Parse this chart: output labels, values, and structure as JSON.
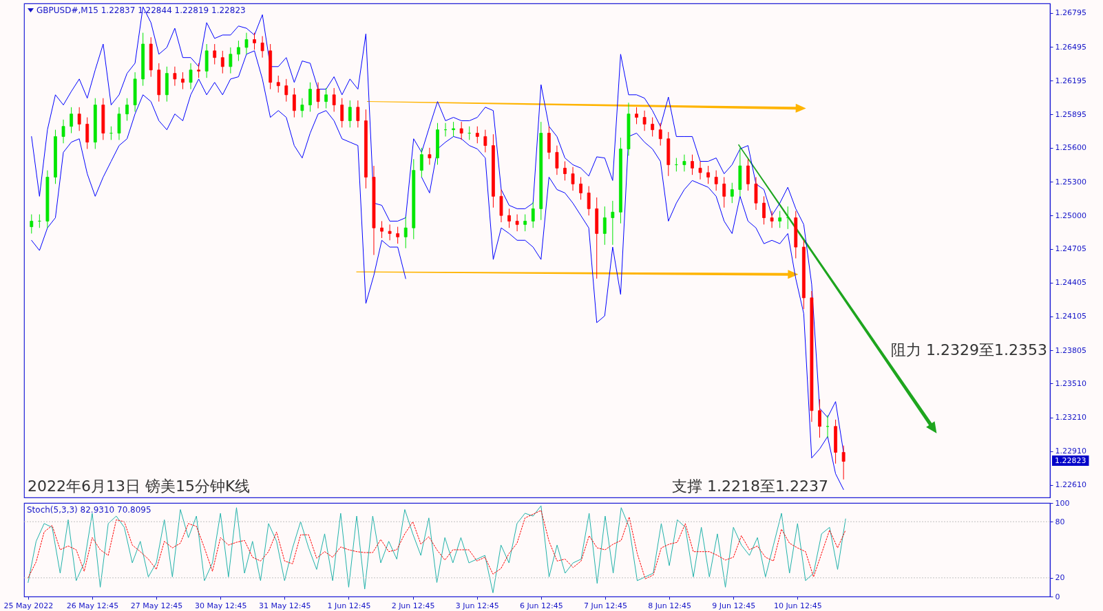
{
  "chart_data": [
    {
      "type": "candlestick",
      "title": "GBPUSD#,M15 1.22837 1.22844 1.22819 1.22823",
      "categories": [
        null,
        null,
        null,
        null,
        null,
        null,
        null,
        null,
        null,
        null,
        null,
        null,
        null,
        null,
        null,
        null,
        null,
        null,
        null,
        null,
        null,
        null,
        null,
        null,
        null,
        null,
        null,
        null,
        null,
        null,
        null,
        null,
        null,
        null,
        null,
        null,
        null,
        null,
        null,
        null,
        null,
        null,
        null,
        null,
        null,
        null,
        null,
        null,
        null,
        null,
        null,
        null,
        null,
        null,
        null,
        null,
        null,
        null,
        null,
        null,
        null,
        null,
        null,
        null,
        null,
        null,
        null,
        null,
        null,
        null,
        null,
        null,
        null,
        null,
        null,
        null,
        null,
        null,
        null,
        null,
        null,
        null,
        null,
        null,
        null,
        null,
        null,
        null,
        null,
        null,
        null,
        null,
        null,
        null,
        null,
        null,
        null,
        null,
        null,
        null,
        null,
        null,
        null,
        null,
        null,
        null,
        null,
        null,
        null,
        null,
        null,
        null,
        null,
        null,
        null,
        null,
        null,
        null,
        null,
        null,
        null,
        null,
        null,
        null,
        null,
        null,
        null,
        null
      ],
      "ohlc": [
        [
          1.249,
          1.2501,
          1.2484,
          1.2495
        ],
        [
          1.2495,
          1.2501,
          1.2489,
          1.2495
        ],
        [
          1.2495,
          1.254,
          1.2489,
          1.2534
        ],
        [
          1.2534,
          1.2576,
          1.2528,
          1.257
        ],
        [
          1.257,
          1.2585,
          1.2564,
          1.2579
        ],
        [
          1.2579,
          1.2596,
          1.2573,
          1.259
        ],
        [
          1.259,
          1.2596,
          1.2575,
          1.2581
        ],
        [
          1.2581,
          1.2587,
          1.2559,
          1.2565
        ],
        [
          1.2565,
          1.2604,
          1.2559,
          1.2598
        ],
        [
          1.2598,
          1.2604,
          1.2567,
          1.2573
        ],
        [
          1.2573,
          1.2579,
          1.2567,
          1.2573
        ],
        [
          1.2573,
          1.2596,
          1.2567,
          1.259
        ],
        [
          1.259,
          1.2604,
          1.2584,
          1.2598
        ],
        [
          1.2598,
          1.2627,
          1.2592,
          1.2621
        ],
        [
          1.2621,
          1.2662,
          1.2615,
          1.2652
        ],
        [
          1.2652,
          1.2658,
          1.2623,
          1.2629
        ],
        [
          1.2629,
          1.2635,
          1.2601,
          1.2607
        ],
        [
          1.2607,
          1.2632,
          1.2601,
          1.2626
        ],
        [
          1.2626,
          1.2632,
          1.2615,
          1.2621
        ],
        [
          1.2621,
          1.2627,
          1.2612,
          1.2618
        ],
        [
          1.2618,
          1.2635,
          1.2612,
          1.2629
        ],
        [
          1.2629,
          1.2635,
          1.2622,
          1.2628
        ],
        [
          1.2628,
          1.2652,
          1.2622,
          1.2646
        ],
        [
          1.2646,
          1.2652,
          1.2634,
          1.264
        ],
        [
          1.264,
          1.2646,
          1.2626,
          1.2632
        ],
        [
          1.2632,
          1.2649,
          1.2626,
          1.2643
        ],
        [
          1.2643,
          1.2655,
          1.2637,
          1.2649
        ],
        [
          1.2649,
          1.2662,
          1.2643,
          1.2656
        ],
        [
          1.2656,
          1.2662,
          1.2647,
          1.2653
        ],
        [
          1.2653,
          1.2659,
          1.264,
          1.2646
        ],
        [
          1.2646,
          1.2652,
          1.2612,
          1.2618
        ],
        [
          1.2618,
          1.2624,
          1.2609,
          1.2615
        ],
        [
          1.2615,
          1.2621,
          1.2601,
          1.2607
        ],
        [
          1.2607,
          1.2613,
          1.2587,
          1.2593
        ],
        [
          1.2593,
          1.2604,
          1.2587,
          1.2598
        ],
        [
          1.2598,
          1.2618,
          1.2592,
          1.2612
        ],
        [
          1.2612,
          1.2618,
          1.2595,
          1.2601
        ],
        [
          1.2601,
          1.2613,
          1.2595,
          1.2607
        ],
        [
          1.2607,
          1.2613,
          1.2592,
          1.2598
        ],
        [
          1.2598,
          1.2604,
          1.2578,
          1.2584
        ],
        [
          1.2584,
          1.2602,
          1.2578,
          1.2596
        ],
        [
          1.2596,
          1.2602,
          1.2578,
          1.2584
        ],
        [
          1.2584,
          1.2594,
          1.2524,
          1.2534
        ],
        [
          1.2534,
          1.2544,
          1.2465,
          1.2489
        ],
        [
          1.2489,
          1.2495,
          1.248,
          1.2486
        ],
        [
          1.2486,
          1.2492,
          1.2478,
          1.2484
        ],
        [
          1.2484,
          1.249,
          1.2475,
          1.2481
        ],
        [
          1.2481,
          1.2499,
          1.2471,
          1.2489
        ],
        [
          1.2489,
          1.255,
          1.2479,
          1.254
        ],
        [
          1.254,
          1.256,
          1.2534,
          1.2554
        ],
        [
          1.2554,
          1.256,
          1.2545,
          1.2551
        ],
        [
          1.2551,
          1.2582,
          1.2545,
          1.2576
        ],
        [
          1.2576,
          1.2582,
          1.257,
          1.2576
        ],
        [
          1.2576,
          1.2583,
          1.257,
          1.2577
        ],
        [
          1.2577,
          1.2583,
          1.2567,
          1.2573
        ],
        [
          1.2573,
          1.2579,
          1.2567,
          1.2573
        ],
        [
          1.2573,
          1.2579,
          1.2564,
          1.257
        ],
        [
          1.257,
          1.2576,
          1.2556,
          1.2562
        ],
        [
          1.2562,
          1.2572,
          1.2507,
          1.2517
        ],
        [
          1.2517,
          1.2523,
          1.2494,
          1.25
        ],
        [
          1.25,
          1.2506,
          1.2489,
          1.2495
        ],
        [
          1.2495,
          1.2501,
          1.2486,
          1.2492
        ],
        [
          1.2492,
          1.2501,
          1.2486,
          1.2495
        ],
        [
          1.2495,
          1.2512,
          1.2489,
          1.2506
        ],
        [
          1.2506,
          1.2583,
          1.2496,
          1.2573
        ],
        [
          1.2573,
          1.2579,
          1.255,
          1.2556
        ],
        [
          1.2556,
          1.2562,
          1.2536,
          1.2542
        ],
        [
          1.2542,
          1.2548,
          1.2531,
          1.2537
        ],
        [
          1.2537,
          1.2543,
          1.2522,
          1.2528
        ],
        [
          1.2528,
          1.2534,
          1.2514,
          1.252
        ],
        [
          1.252,
          1.2526,
          1.25,
          1.2506
        ],
        [
          1.2506,
          1.2516,
          1.2444,
          1.2484
        ],
        [
          1.2484,
          1.2508,
          1.2474,
          1.2498
        ],
        [
          1.2498,
          1.2513,
          1.2474,
          1.2503
        ],
        [
          1.2503,
          1.2569,
          1.2493,
          1.2559
        ],
        [
          1.2559,
          1.26,
          1.2553,
          1.259
        ],
        [
          1.259,
          1.2596,
          1.2581,
          1.2587
        ],
        [
          1.2587,
          1.2593,
          1.2575,
          1.2581
        ],
        [
          1.2581,
          1.2587,
          1.257,
          1.2576
        ],
        [
          1.2576,
          1.2582,
          1.2562,
          1.2568
        ],
        [
          1.2568,
          1.2574,
          1.2535,
          1.2545
        ],
        [
          1.2545,
          1.2551,
          1.2539,
          1.2545
        ],
        [
          1.2545,
          1.2554,
          1.2539,
          1.2548
        ],
        [
          1.2548,
          1.2554,
          1.2536,
          1.2542
        ],
        [
          1.2542,
          1.2548,
          1.2532,
          1.2538
        ],
        [
          1.2538,
          1.2544,
          1.2528,
          1.2534
        ],
        [
          1.2534,
          1.254,
          1.2522,
          1.2528
        ],
        [
          1.2528,
          1.2534,
          1.2507,
          1.2517
        ],
        [
          1.2517,
          1.2529,
          1.2511,
          1.2523
        ],
        [
          1.2523,
          1.256,
          1.2517,
          1.2544
        ],
        [
          1.2544,
          1.255,
          1.2522,
          1.2528
        ],
        [
          1.2528,
          1.2534,
          1.2505,
          1.2511
        ],
        [
          1.2511,
          1.2517,
          1.2492,
          1.2498
        ],
        [
          1.2498,
          1.2504,
          1.2489,
          1.2495
        ],
        [
          1.2495,
          1.2504,
          1.2489,
          1.2498
        ],
        [
          1.2498,
          1.2508,
          1.2488,
          1.2498
        ],
        [
          1.2498,
          1.2504,
          1.2462,
          1.2472
        ],
        [
          1.2472,
          1.2478,
          1.2417,
          1.2427
        ],
        [
          1.2427,
          1.2433,
          1.2317,
          1.2327
        ],
        [
          1.2327,
          1.2337,
          1.2303,
          1.2313
        ],
        [
          1.2313,
          1.2323,
          1.2303,
          1.2313
        ],
        [
          1.2313,
          1.2319,
          1.228,
          1.229
        ],
        [
          1.229,
          1.2296,
          1.2266,
          1.2282
        ],
        null,
        null,
        null,
        null,
        null,
        null,
        null,
        null,
        null,
        null,
        null,
        null,
        null,
        null,
        null,
        null,
        null,
        null,
        null,
        null,
        null,
        null,
        null,
        null,
        null
      ],
      "colors": [
        "#00e600",
        "#00e600",
        "#00e600",
        "#00e600",
        "#00e600",
        "#00e600",
        "#ff0000",
        "#ff0000",
        "#00e600",
        "#ff0000",
        "#00e600",
        "#00e600",
        "#00e600",
        "#00e600",
        "#00e600",
        "#ff0000",
        "#ff0000",
        "#00e600",
        "#ff0000",
        "#ff0000",
        "#00e600",
        "#ff0000",
        "#00e600",
        "#ff0000",
        "#ff0000",
        "#00e600",
        "#00e600",
        "#00e600",
        "#ff0000",
        "#ff0000",
        "#ff0000",
        "#ff0000",
        "#ff0000",
        "#ff0000",
        "#00e600",
        "#00e600",
        "#ff0000",
        "#00e600",
        "#ff0000",
        "#ff0000",
        "#00e600",
        "#ff0000",
        "#ff0000",
        "#ff0000",
        "#ff0000",
        "#ff0000",
        "#ff0000",
        "#00e600",
        "#00e600",
        "#00e600",
        "#ff0000",
        "#00e600",
        "#00e600",
        "#00e600",
        "#ff0000",
        "#00e600",
        "#ff0000",
        "#ff0000",
        "#ff0000",
        "#ff0000",
        "#ff0000",
        "#ff0000",
        "#00e600",
        "#00e600",
        "#00e600",
        "#ff0000",
        "#ff0000",
        "#ff0000",
        "#ff0000",
        "#ff0000",
        "#ff0000",
        "#ff0000",
        "#00e600",
        "#00e600",
        "#00e600",
        "#00e600",
        "#ff0000",
        "#ff0000",
        "#ff0000",
        "#ff0000",
        "#ff0000",
        "#00e600",
        "#00e600",
        "#ff0000",
        "#ff0000",
        "#ff0000",
        "#ff0000",
        "#ff0000",
        "#00e600",
        "#00e600",
        "#ff0000",
        "#ff0000",
        "#ff0000",
        "#ff0000",
        "#00e600",
        "#00e600",
        "#ff0000",
        "#ff0000",
        "#ff0000",
        "#ff0000",
        "#00e600",
        "#ff0000",
        "#ff0000",
        null,
        null,
        null,
        null,
        null,
        null,
        null,
        null,
        null,
        null,
        null,
        null,
        null,
        null,
        null,
        null,
        null,
        null,
        null,
        null,
        null,
        null,
        null,
        null,
        null
      ],
      "series": [
        {
          "type": "line",
          "color": "#0000ff",
          "values": [
            1.257,
            1.2517,
            1.2576,
            1.2607,
            1.2598,
            1.261,
            1.2621,
            1.2604,
            1.2629,
            1.2652,
            1.2598,
            1.2607,
            1.2626,
            1.2635,
            1.2685,
            1.2671,
            1.2643,
            1.2649,
            1.2666,
            1.264,
            1.264,
            1.2632,
            1.2671,
            1.2657,
            1.266,
            1.266,
            1.2668,
            1.2666,
            1.266,
            1.2678,
            1.2632,
            1.2632,
            1.264,
            1.2618,
            1.2637,
            1.2635,
            1.2612,
            1.2612,
            1.2623,
            1.2607,
            1.2621,
            1.2612,
            1.2661,
            1.2511,
            1.2509,
            1.2495,
            1.2495,
            1.2498,
            1.2568,
            1.2556,
            1.2579,
            1.2601,
            1.2584,
            1.2587,
            1.2584,
            1.2584,
            1.2587,
            1.2596,
            1.2593,
            1.2523,
            1.2509,
            1.2506,
            1.2506,
            1.2511,
            1.2616,
            1.2579,
            1.257,
            1.2551,
            1.2545,
            1.2542,
            1.2535,
            1.2552,
            1.2551,
            1.2531,
            1.2643,
            1.2607,
            1.2607,
            1.2604,
            1.2593,
            1.2579,
            1.2605,
            1.257,
            1.257,
            1.257,
            1.2548,
            1.2548,
            1.2551,
            1.2537,
            1.2545,
            1.2559,
            1.2562,
            1.2528,
            1.2523,
            1.25,
            1.2511,
            1.2525,
            1.2506,
            1.2492,
            1.2439,
            1.2329,
            1.2321,
            1.2335,
            1.229,
            null,
            null,
            null,
            null,
            null,
            null,
            null,
            null,
            null,
            null,
            null,
            null,
            null,
            null,
            null,
            null,
            null,
            null,
            null,
            null,
            null,
            null,
            null,
            null,
            null
          ]
        },
        {
          "type": "line",
          "color": "#0000ff",
          "values": [
            1.2478,
            1.2469,
            1.2489,
            1.2498,
            1.2556,
            1.2565,
            1.2568,
            1.2537,
            1.2517,
            1.2534,
            1.2548,
            1.2562,
            1.2568,
            1.259,
            1.2607,
            1.2601,
            1.2584,
            1.2576,
            1.259,
            1.2584,
            1.2607,
            1.2621,
            1.2607,
            1.2618,
            1.2607,
            1.2621,
            1.2623,
            1.2643,
            1.2646,
            1.2621,
            1.2587,
            1.2593,
            1.2587,
            1.2562,
            1.2551,
            1.2573,
            1.259,
            1.2593,
            1.2584,
            1.2568,
            1.2565,
            1.2562,
            1.2422,
            1.2447,
            1.2478,
            1.2472,
            1.2472,
            1.2444,
            null,
            1.2534,
            1.252,
            1.2559,
            1.2565,
            1.257,
            1.2568,
            1.2562,
            1.2559,
            1.2551,
            1.2461,
            1.2489,
            1.2484,
            1.2478,
            1.2478,
            1.2472,
            1.2461,
            1.2534,
            1.2523,
            1.252,
            1.2511,
            1.25,
            1.2489,
            1.2405,
            1.2411,
            1.2472,
            1.243,
            1.257,
            1.2573,
            1.2565,
            1.2559,
            1.2548,
            1.2495,
            1.2511,
            1.2523,
            1.2531,
            1.2528,
            1.2525,
            1.2517,
            1.2495,
            1.2484,
            1.2517,
            1.2495,
            1.2489,
            1.2475,
            1.2478,
            1.2475,
            1.2484,
            1.2444,
            1.2413,
            1.2285,
            1.2293,
            1.2304,
            1.2271,
            1.2257,
            null,
            null,
            null,
            null,
            null,
            null,
            null,
            null,
            null,
            null,
            null,
            null,
            null,
            null,
            null,
            null,
            null,
            null,
            null,
            null,
            null,
            null,
            null,
            null,
            null
          ]
        }
      ],
      "ylim": [
        1.225,
        1.2688
      ],
      "yticks": [
        {
          "value": 1.2261,
          "label": "1.22610"
        },
        {
          "value": 1.2291,
          "label": "1.22910"
        },
        {
          "value": 1.2321,
          "label": "1.23210"
        },
        {
          "value": 1.2351,
          "label": "1.23510"
        },
        1.23805,
        1.24105,
        1.24405,
        1.24705,
        {
          "value": 1.25,
          "label": "1.25000"
        },
        {
          "value": 1.253,
          "label": "1.25300"
        },
        {
          "value": 1.256,
          "label": "1.25600"
        },
        1.25895,
        1.26195,
        1.26495,
        1.26795
      ],
      "tick_labels": "y",
      "annotations": [
        "2022年6月13日 镑美15分钟K线",
        "支撑 1.2218至1.2237",
        "阻力 1.2329至1.2353",
        "1.22823"
      ]
    },
    {
      "type": "line",
      "title": "Stoch(5,3,3) 82.9310 70.8095",
      "categories": [
        "25 May 2022",
        null,
        null,
        null,
        null,
        null,
        null,
        null,
        "26 May 12:45",
        null,
        null,
        null,
        null,
        null,
        null,
        null,
        "27 May 12:45",
        null,
        null,
        null,
        null,
        null,
        null,
        null,
        "30 May 12:45",
        null,
        null,
        null,
        null,
        null,
        null,
        null,
        "31 May 12:45",
        null,
        null,
        null,
        null,
        null,
        null,
        null,
        "1 Jun 12:45",
        null,
        null,
        null,
        null,
        null,
        null,
        null,
        "2 Jun 12:45",
        null,
        null,
        null,
        null,
        null,
        null,
        null,
        "3 Jun 12:45",
        null,
        null,
        null,
        null,
        null,
        null,
        null,
        "6 Jun 12:45",
        null,
        null,
        null,
        null,
        null,
        null,
        null,
        "7 Jun 12:45",
        null,
        null,
        null,
        null,
        null,
        null,
        null,
        "8 Jun 12:45",
        null,
        null,
        null,
        null,
        null,
        null,
        null,
        "9 Jun 12:45",
        null,
        null,
        null,
        null,
        null,
        null,
        null,
        "10 Jun 12:45",
        null,
        null,
        null,
        null,
        null,
        null,
        null,
        null,
        null,
        null,
        null,
        null,
        null,
        null,
        null,
        null,
        null,
        null,
        null,
        null,
        null,
        null,
        null,
        null,
        null,
        null,
        null,
        null,
        null,
        null,
        null
      ],
      "series": [
        {
          "color": "#20b2aa",
          "values": [
            15,
            59,
            78,
            74,
            25,
            82,
            17,
            36,
            89,
            10,
            78,
            86,
            74,
            36,
            59,
            21,
            36,
            82,
            21,
            93,
            63,
            86,
            17,
            36,
            89,
            21,
            95,
            25,
            59,
            17,
            78,
            59,
            17,
            52,
            80,
            52,
            29,
            67,
            17,
            89,
            10,
            86,
            8,
            86,
            36,
            59,
            40,
            93,
            67,
            44,
            84,
            15,
            63,
            36,
            63,
            36,
            40,
            44,
            4,
            55,
            36,
            78,
            89,
            86,
            97,
            21,
            55,
            25,
            36,
            40,
            89,
            14,
            86,
            25,
            95,
            74,
            17,
            21,
            25,
            78,
            33,
            82,
            74,
            21,
            74,
            21,
            67,
            10,
            74,
            55,
            44,
            63,
            21,
            55,
            89,
            25,
            78,
            17,
            25,
            67,
            74,
            29,
            83,
            null,
            null,
            null,
            null,
            null,
            null,
            null,
            null,
            null,
            null,
            null,
            null,
            null,
            null,
            null,
            null,
            null,
            null,
            null,
            null,
            null,
            null,
            null,
            null,
            null
          ]
        },
        {
          "color": "#ff0000",
          "line_style": "dotted",
          "values": [
            20,
            37,
            69,
            76,
            50,
            54,
            50,
            27,
            63,
            50,
            44,
            82,
            80,
            55,
            48,
            40,
            29,
            59,
            52,
            57,
            78,
            75,
            52,
            27,
            63,
            55,
            58,
            60,
            42,
            38,
            48,
            69,
            38,
            35,
            66,
            66,
            41,
            48,
            42,
            53,
            50,
            48,
            47,
            47,
            61,
            48,
            50,
            67,
            80,
            56,
            64,
            50,
            39,
            50,
            50,
            50,
            38,
            42,
            24,
            30,
            46,
            57,
            84,
            88,
            92,
            59,
            38,
            40,
            31,
            38,
            65,
            52,
            50,
            56,
            60,
            85,
            46,
            19,
            23,
            52,
            56,
            58,
            78,
            48,
            48,
            48,
            44,
            39,
            42,
            65,
            50,
            54,
            42,
            38,
            72,
            57,
            52,
            48,
            21,
            46,
            71,
            52,
            71,
            null,
            null,
            null,
            null,
            null,
            null,
            null,
            null,
            null,
            null,
            null,
            null,
            null,
            null,
            null,
            null,
            null,
            null,
            null,
            null,
            null,
            null,
            null,
            null,
            null
          ]
        }
      ],
      "ylim": [
        0,
        100
      ],
      "yticks": [
        0,
        20,
        80,
        100
      ],
      "ref_lines": [
        {
          "axis": "y",
          "value": 20,
          "color": "#c0c0c0",
          "line_style": "dotted"
        },
        {
          "axis": "y",
          "value": 80,
          "color": "#c0c0c0",
          "line_style": "dotted"
        }
      ]
    }
  ]
}
